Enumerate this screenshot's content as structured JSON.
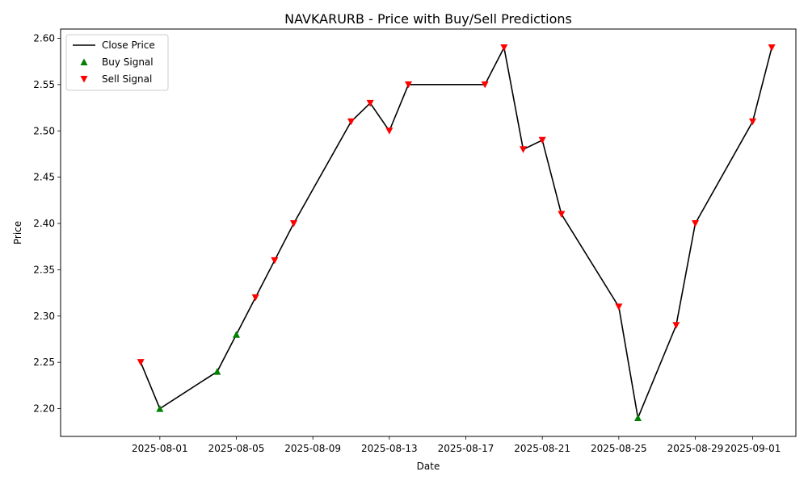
{
  "chart_data": {
    "type": "line",
    "title": "NAVKARURB - Price with Buy/Sell Predictions",
    "xlabel": "Date",
    "ylabel": "Price",
    "x_range": [
      "2025-07-28",
      "2025-09-03"
    ],
    "ylim": [
      2.17,
      2.61
    ],
    "grid": false,
    "legend_position": "top-left",
    "x_ticks": [
      "2025-08-01",
      "2025-08-05",
      "2025-08-09",
      "2025-08-13",
      "2025-08-17",
      "2025-08-21",
      "2025-08-25",
      "2025-08-29",
      "2025-09-01"
    ],
    "y_ticks": [
      "2.20",
      "2.25",
      "2.30",
      "2.35",
      "2.40",
      "2.45",
      "2.50",
      "2.55",
      "2.60"
    ],
    "series": [
      {
        "name": "Close Price",
        "kind": "line",
        "color": "#000000",
        "points": [
          [
            "2025-07-31",
            2.25
          ],
          [
            "2025-08-01",
            2.2
          ],
          [
            "2025-08-04",
            2.24
          ],
          [
            "2025-08-05",
            2.28
          ],
          [
            "2025-08-06",
            2.32
          ],
          [
            "2025-08-07",
            2.36
          ],
          [
            "2025-08-08",
            2.4
          ],
          [
            "2025-08-11",
            2.51
          ],
          [
            "2025-08-12",
            2.53
          ],
          [
            "2025-08-13",
            2.5
          ],
          [
            "2025-08-14",
            2.55
          ],
          [
            "2025-08-18",
            2.55
          ],
          [
            "2025-08-19",
            2.59
          ],
          [
            "2025-08-20",
            2.48
          ],
          [
            "2025-08-21",
            2.49
          ],
          [
            "2025-08-22",
            2.41
          ],
          [
            "2025-08-25",
            2.31
          ],
          [
            "2025-08-26",
            2.19
          ],
          [
            "2025-08-28",
            2.29
          ],
          [
            "2025-08-29",
            2.4
          ],
          [
            "2025-09-01",
            2.51
          ],
          [
            "2025-09-02",
            2.59
          ]
        ]
      },
      {
        "name": "Buy Signal",
        "kind": "marker-up",
        "color": "#008000",
        "points": [
          [
            "2025-08-01",
            2.2
          ],
          [
            "2025-08-04",
            2.24
          ],
          [
            "2025-08-05",
            2.28
          ],
          [
            "2025-08-26",
            2.19
          ]
        ]
      },
      {
        "name": "Sell Signal",
        "kind": "marker-down",
        "color": "#ff0000",
        "points": [
          [
            "2025-07-31",
            2.25
          ],
          [
            "2025-08-06",
            2.32
          ],
          [
            "2025-08-07",
            2.36
          ],
          [
            "2025-08-08",
            2.4
          ],
          [
            "2025-08-11",
            2.51
          ],
          [
            "2025-08-12",
            2.53
          ],
          [
            "2025-08-13",
            2.5
          ],
          [
            "2025-08-14",
            2.55
          ],
          [
            "2025-08-18",
            2.55
          ],
          [
            "2025-08-19",
            2.59
          ],
          [
            "2025-08-20",
            2.48
          ],
          [
            "2025-08-21",
            2.49
          ],
          [
            "2025-08-22",
            2.41
          ],
          [
            "2025-08-25",
            2.31
          ],
          [
            "2025-08-28",
            2.29
          ],
          [
            "2025-08-29",
            2.4
          ],
          [
            "2025-09-01",
            2.51
          ],
          [
            "2025-09-02",
            2.59
          ]
        ]
      }
    ]
  }
}
